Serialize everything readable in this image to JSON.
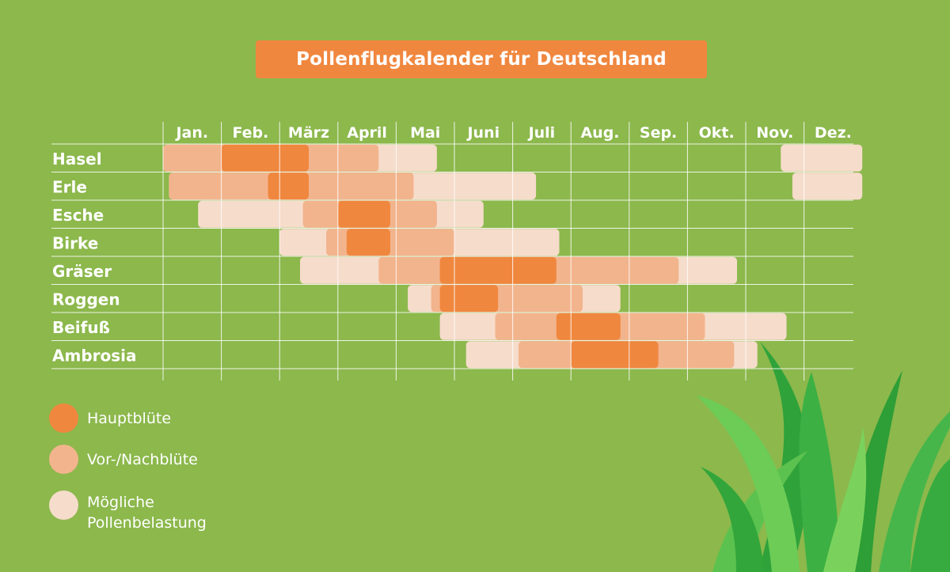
{
  "chart_data": {
    "type": "bar",
    "title": "Pollenflugkalender für Deutschland",
    "months": [
      "Jan.",
      "Feb.",
      "März",
      "April",
      "Mai",
      "Juni",
      "Juli",
      "Aug.",
      "Sep.",
      "Okt.",
      "Nov.",
      "Dez."
    ],
    "x_unit": "month (0 = start of January, 12 = end of December)",
    "legend": [
      {
        "key": "haupt",
        "label": "Hauptblüte",
        "color": "#f0873f"
      },
      {
        "key": "vornach",
        "label": "Vor-/Nachblüte",
        "color": "#f2b48d"
      },
      {
        "key": "moeglich",
        "label_lines": [
          "Mögliche",
          "Pollenbelastung"
        ],
        "color": "#f6dccb"
      }
    ],
    "plants": [
      {
        "name": "Hasel",
        "segments": [
          {
            "level": "moeglich",
            "start": 0.0,
            "end": 4.7
          },
          {
            "level": "moeglich",
            "start": 10.6,
            "end": 12.0
          },
          {
            "level": "vornach",
            "start": 0.0,
            "end": 3.7
          },
          {
            "level": "haupt",
            "start": 1.0,
            "end": 2.5
          }
        ]
      },
      {
        "name": "Erle",
        "segments": [
          {
            "level": "moeglich",
            "start": 0.1,
            "end": 6.4
          },
          {
            "level": "moeglich",
            "start": 10.8,
            "end": 12.0
          },
          {
            "level": "vornach",
            "start": 0.1,
            "end": 4.3
          },
          {
            "level": "haupt",
            "start": 1.8,
            "end": 2.5
          }
        ]
      },
      {
        "name": "Esche",
        "segments": [
          {
            "level": "moeglich",
            "start": 0.6,
            "end": 5.5
          },
          {
            "level": "vornach",
            "start": 2.4,
            "end": 4.7
          },
          {
            "level": "haupt",
            "start": 3.0,
            "end": 3.9
          }
        ]
      },
      {
        "name": "Birke",
        "segments": [
          {
            "level": "moeglich",
            "start": 2.0,
            "end": 6.8
          },
          {
            "level": "vornach",
            "start": 2.8,
            "end": 5.0
          },
          {
            "level": "haupt",
            "start": 3.15,
            "end": 3.9
          }
        ]
      },
      {
        "name": "Gräser",
        "segments": [
          {
            "level": "moeglich",
            "start": 2.35,
            "end": 9.85
          },
          {
            "level": "vornach",
            "start": 3.7,
            "end": 8.85
          },
          {
            "level": "haupt",
            "start": 4.75,
            "end": 6.75
          }
        ]
      },
      {
        "name": "Roggen",
        "segments": [
          {
            "level": "moeglich",
            "start": 4.2,
            "end": 7.85
          },
          {
            "level": "vornach",
            "start": 4.6,
            "end": 7.2
          },
          {
            "level": "haupt",
            "start": 4.75,
            "end": 5.75
          }
        ]
      },
      {
        "name": "Beifuß",
        "segments": [
          {
            "level": "moeglich",
            "start": 4.75,
            "end": 10.7
          },
          {
            "level": "vornach",
            "start": 5.7,
            "end": 9.3
          },
          {
            "level": "haupt",
            "start": 6.75,
            "end": 7.85
          }
        ]
      },
      {
        "name": "Ambrosia",
        "segments": [
          {
            "level": "moeglich",
            "start": 5.2,
            "end": 10.2
          },
          {
            "level": "vornach",
            "start": 6.1,
            "end": 9.8
          },
          {
            "level": "haupt",
            "start": 7.0,
            "end": 8.5
          }
        ]
      }
    ]
  },
  "decoration": {
    "grass_icon": "grass-tuft-icon"
  }
}
